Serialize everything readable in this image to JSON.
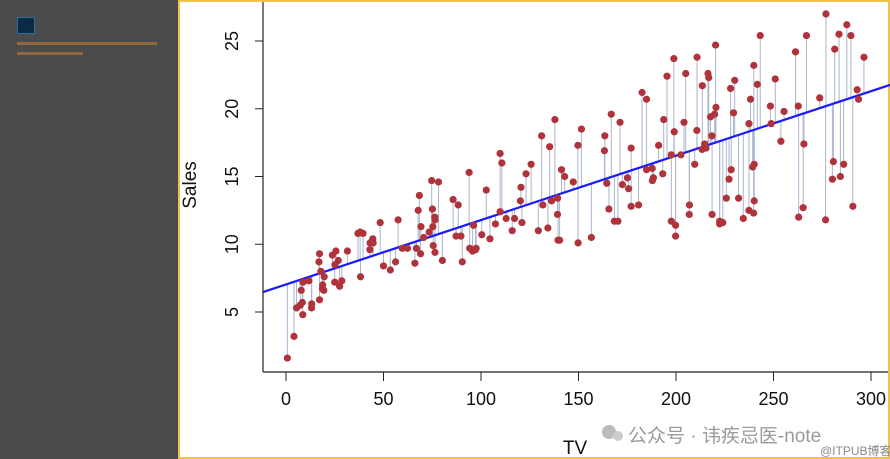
{
  "colors": {
    "point": "#b0323a",
    "fit": "#1a1aff",
    "residual": "#a9b6cc",
    "panel": "#4b4b4b",
    "frame": "#f1c24b"
  },
  "watermark": {
    "text": "公众号 · 讳疾忌医-note",
    "source": "@ITPUB博客",
    "icon": "wechat-icon"
  },
  "chart_data": {
    "type": "scatter",
    "title": "",
    "xlabel": "TV",
    "ylabel": "Sales",
    "xlim": [
      -12,
      308
    ],
    "ylim": [
      0.5,
      28
    ],
    "xticks": [
      0,
      50,
      100,
      150,
      200,
      250,
      300
    ],
    "yticks": [
      5,
      10,
      15,
      20,
      25
    ],
    "grid": false,
    "fit": {
      "intercept": 7.0326,
      "slope": 0.04754
    },
    "points": [
      [
        230.1,
        22.1
      ],
      [
        44.5,
        10.4
      ],
      [
        17.2,
        9.3
      ],
      [
        151.5,
        18.5
      ],
      [
        180.8,
        12.9
      ],
      [
        8.7,
        7.2
      ],
      [
        57.5,
        11.8
      ],
      [
        120.2,
        13.2
      ],
      [
        8.6,
        4.8
      ],
      [
        199.8,
        10.6
      ],
      [
        66.1,
        8.6
      ],
      [
        214.7,
        17.4
      ],
      [
        23.8,
        9.2
      ],
      [
        97.5,
        9.7
      ],
      [
        204.1,
        19
      ],
      [
        195.4,
        22.4
      ],
      [
        67.8,
        12.5
      ],
      [
        281.4,
        24.4
      ],
      [
        69.2,
        11.3
      ],
      [
        147.3,
        14.6
      ],
      [
        218.4,
        18
      ],
      [
        237.4,
        12.5
      ],
      [
        13.2,
        5.6
      ],
      [
        228.3,
        15.5
      ],
      [
        62.3,
        9.7
      ],
      [
        262.9,
        12
      ],
      [
        142.9,
        15
      ],
      [
        240.1,
        15.9
      ],
      [
        248.8,
        18.9
      ],
      [
        70.6,
        10.5
      ],
      [
        292.9,
        21.4
      ],
      [
        112.9,
        11.9
      ],
      [
        97.2,
        9.6
      ],
      [
        265.6,
        17.4
      ],
      [
        95.7,
        9.5
      ],
      [
        290.7,
        12.8
      ],
      [
        266.9,
        25.4
      ],
      [
        74.7,
        14.7
      ],
      [
        43.1,
        10.1
      ],
      [
        228,
        21.5
      ],
      [
        202.5,
        16.6
      ],
      [
        177,
        17.1
      ],
      [
        293.6,
        20.7
      ],
      [
        206.9,
        12.9
      ],
      [
        25.1,
        8.5
      ],
      [
        175.1,
        14.9
      ],
      [
        89.7,
        10.6
      ],
      [
        239.9,
        23.2
      ],
      [
        227.2,
        14.8
      ],
      [
        66.9,
        9.7
      ],
      [
        199.8,
        11.4
      ],
      [
        100.4,
        10.7
      ],
      [
        216.4,
        22.6
      ],
      [
        182.6,
        21.2
      ],
      [
        262.7,
        20.2
      ],
      [
        198.9,
        23.7
      ],
      [
        7.3,
        5.5
      ],
      [
        136.2,
        13.2
      ],
      [
        210.8,
        23.8
      ],
      [
        210.7,
        18.4
      ],
      [
        53.5,
        8.1
      ],
      [
        261.3,
        24.2
      ],
      [
        239.3,
        15.7
      ],
      [
        102.7,
        14
      ],
      [
        131.1,
        18
      ],
      [
        69,
        9.3
      ],
      [
        31.5,
        9.5
      ],
      [
        139.3,
        13.4
      ],
      [
        237.4,
        18.9
      ],
      [
        216.8,
        22.3
      ],
      [
        199.1,
        18.3
      ],
      [
        109.8,
        12.4
      ],
      [
        26.8,
        8.8
      ],
      [
        129.4,
        11
      ],
      [
        213.4,
        17
      ],
      [
        16.9,
        8.7
      ],
      [
        27.5,
        6.9
      ],
      [
        120.5,
        14.2
      ],
      [
        5.4,
        5.3
      ],
      [
        116,
        11
      ],
      [
        76.4,
        11.8
      ],
      [
        239.8,
        12.3
      ],
      [
        75.3,
        11.3
      ],
      [
        68.4,
        13.6
      ],
      [
        213.5,
        21.7
      ],
      [
        193.2,
        15.2
      ],
      [
        76.3,
        12
      ],
      [
        110.7,
        16
      ],
      [
        88.3,
        12.9
      ],
      [
        109.8,
        16.7
      ],
      [
        134.3,
        11.2
      ],
      [
        28.6,
        7.3
      ],
      [
        217.7,
        19.4
      ],
      [
        250.9,
        22.2
      ],
      [
        107.4,
        11.5
      ],
      [
        163.3,
        16.9
      ],
      [
        197.6,
        11.7
      ],
      [
        184.9,
        15.5
      ],
      [
        289.7,
        25.4
      ],
      [
        135.2,
        17.2
      ],
      [
        222.4,
        11.7
      ],
      [
        296.4,
        23.8
      ],
      [
        280.2,
        14.8
      ],
      [
        187.9,
        14.7
      ],
      [
        238.2,
        20.7
      ],
      [
        137.9,
        19.2
      ],
      [
        25,
        7.2
      ],
      [
        90.4,
        8.7
      ],
      [
        13.1,
        5.3
      ],
      [
        255.4,
        19.8
      ],
      [
        225.8,
        13.4
      ],
      [
        241.7,
        21.8
      ],
      [
        175.7,
        14.1
      ],
      [
        209.6,
        15.9
      ],
      [
        78.2,
        14.6
      ],
      [
        75.1,
        12.6
      ],
      [
        139.2,
        12.2
      ],
      [
        76.4,
        9.4
      ],
      [
        125.7,
        15.9
      ],
      [
        19.4,
        6.6
      ],
      [
        141.3,
        15.5
      ],
      [
        18.8,
        7
      ],
      [
        224,
        11.6
      ],
      [
        123.1,
        15.2
      ],
      [
        229.5,
        19.7
      ],
      [
        87.2,
        10.6
      ],
      [
        7.8,
        6.6
      ],
      [
        80.2,
        8.8
      ],
      [
        220.3,
        24.7
      ],
      [
        59.6,
        9.7
      ],
      [
        0.7,
        1.6
      ],
      [
        265.2,
        12.7
      ],
      [
        8.4,
        5.7
      ],
      [
        219.8,
        19.6
      ],
      [
        36.9,
        10.8
      ],
      [
        48.3,
        11.6
      ],
      [
        25.6,
        9.5
      ],
      [
        273.7,
        20.8
      ],
      [
        43,
        9.6
      ],
      [
        184.9,
        20.7
      ],
      [
        73.4,
        10.9
      ],
      [
        193.7,
        19.2
      ],
      [
        220.5,
        20.1
      ],
      [
        104.6,
        10.4
      ],
      [
        96.2,
        11.4
      ],
      [
        140.3,
        10.3
      ],
      [
        240.1,
        13.2
      ],
      [
        243.2,
        25.4
      ],
      [
        38,
        10.9
      ],
      [
        44.7,
        10.1
      ],
      [
        280.7,
        16.1
      ],
      [
        121,
        11.6
      ],
      [
        197.6,
        16.6
      ],
      [
        171.3,
        19
      ],
      [
        187.8,
        15.6
      ],
      [
        4.1,
        3.2
      ],
      [
        93.9,
        15.3
      ],
      [
        149.8,
        10.1
      ],
      [
        11.7,
        7.3
      ],
      [
        131.7,
        12.9
      ],
      [
        172.5,
        14.4
      ],
      [
        85.7,
        13.3
      ],
      [
        188.4,
        14.9
      ],
      [
        163.5,
        18
      ],
      [
        117.2,
        11.9
      ],
      [
        234.5,
        11.9
      ],
      [
        17.9,
        8
      ],
      [
        206.8,
        12.2
      ],
      [
        215.4,
        17.1
      ],
      [
        284.3,
        15
      ],
      [
        50,
        8.4
      ],
      [
        164.5,
        14.5
      ],
      [
        19.6,
        7.6
      ],
      [
        168.4,
        11.7
      ],
      [
        222.4,
        11.5
      ],
      [
        276.9,
        27
      ],
      [
        248.4,
        20.2
      ],
      [
        170.2,
        11.7
      ],
      [
        276.7,
        11.8
      ],
      [
        165.6,
        12.6
      ],
      [
        156.6,
        10.5
      ],
      [
        218.5,
        12.2
      ],
      [
        56.2,
        8.7
      ],
      [
        287.6,
        26.2
      ],
      [
        253.8,
        17.6
      ],
      [
        205,
        22.6
      ],
      [
        139.5,
        10.3
      ],
      [
        191.1,
        17.3
      ],
      [
        286,
        15.9
      ],
      [
        18.7,
        6.7
      ],
      [
        39.5,
        10.8
      ],
      [
        75.5,
        9.9
      ],
      [
        17.2,
        5.9
      ],
      [
        166.8,
        19.6
      ],
      [
        149.7,
        17.3
      ],
      [
        38.2,
        7.6
      ],
      [
        94.2,
        9.7
      ],
      [
        177,
        12.8
      ],
      [
        283.6,
        25.5
      ],
      [
        232.1,
        13.4
      ]
    ]
  }
}
